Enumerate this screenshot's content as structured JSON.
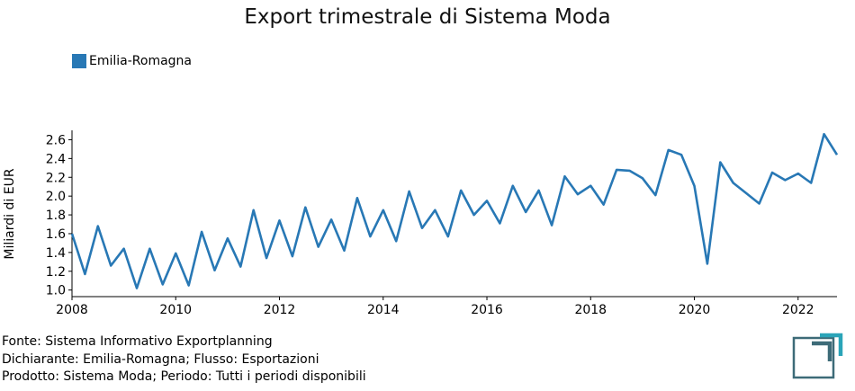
{
  "chart_data": {
    "type": "line",
    "title": "Export trimestrale di Sistema Moda",
    "xlabel": "",
    "ylabel": "Miliardi di EUR",
    "xlim": [
      2008.0,
      2022.75
    ],
    "ylim": [
      0.93,
      2.7
    ],
    "x_ticks": [
      2008,
      2010,
      2012,
      2014,
      2016,
      2018,
      2020,
      2022
    ],
    "y_ticks": [
      1.0,
      1.2,
      1.4,
      1.6,
      1.8,
      2.0,
      2.2,
      2.4,
      2.6
    ],
    "y_tick_labels": [
      "1.0",
      "1.2",
      "1.4",
      "1.6",
      "1.8",
      "2.0",
      "2.2",
      "2.4",
      "2.6"
    ],
    "grid": false,
    "legend_position": "top-left",
    "series": [
      {
        "name": "Emilia-Romagna",
        "color": "#2878b5",
        "x": [
          2008.0,
          2008.25,
          2008.5,
          2008.75,
          2009.0,
          2009.25,
          2009.5,
          2009.75,
          2010.0,
          2010.25,
          2010.5,
          2010.75,
          2011.0,
          2011.25,
          2011.5,
          2011.75,
          2012.0,
          2012.25,
          2012.5,
          2012.75,
          2013.0,
          2013.25,
          2013.5,
          2013.75,
          2014.0,
          2014.25,
          2014.5,
          2014.75,
          2015.0,
          2015.25,
          2015.5,
          2015.75,
          2016.0,
          2016.25,
          2016.5,
          2016.75,
          2017.0,
          2017.25,
          2017.5,
          2017.75,
          2018.0,
          2018.25,
          2018.5,
          2018.75,
          2019.0,
          2019.25,
          2019.5,
          2019.75,
          2020.0,
          2020.25,
          2020.5,
          2020.75,
          2021.0,
          2021.25,
          2021.5,
          2021.75,
          2022.0,
          2022.25,
          2022.5,
          2022.75
        ],
        "values": [
          1.6,
          1.17,
          1.68,
          1.26,
          1.44,
          1.02,
          1.44,
          1.06,
          1.39,
          1.05,
          1.62,
          1.21,
          1.55,
          1.25,
          1.85,
          1.34,
          1.74,
          1.36,
          1.88,
          1.46,
          1.75,
          1.42,
          1.98,
          1.57,
          1.85,
          1.52,
          2.05,
          1.66,
          1.85,
          1.57,
          2.06,
          1.8,
          1.95,
          1.71,
          2.11,
          1.83,
          2.06,
          1.69,
          2.21,
          2.02,
          2.11,
          1.91,
          2.28,
          2.27,
          2.19,
          2.01,
          2.49,
          2.44,
          2.11,
          1.28,
          2.36,
          2.14,
          2.03,
          1.92,
          2.25,
          2.17,
          2.24,
          2.14,
          2.66,
          2.44
        ]
      }
    ]
  },
  "legend": {
    "label": "Emilia-Romagna"
  },
  "footer": {
    "line1": "Fonte: Sistema Informativo Exportplanning",
    "line2": "Dichiarante: Emilia-Romagna; Flusso: Esportazioni",
    "line3": "Prodotto: Sistema Moda; Periodo: Tutti i periodi disponibili"
  },
  "colors": {
    "logo_dark": "#3d6b78",
    "logo_accent": "#2aa4b8"
  }
}
